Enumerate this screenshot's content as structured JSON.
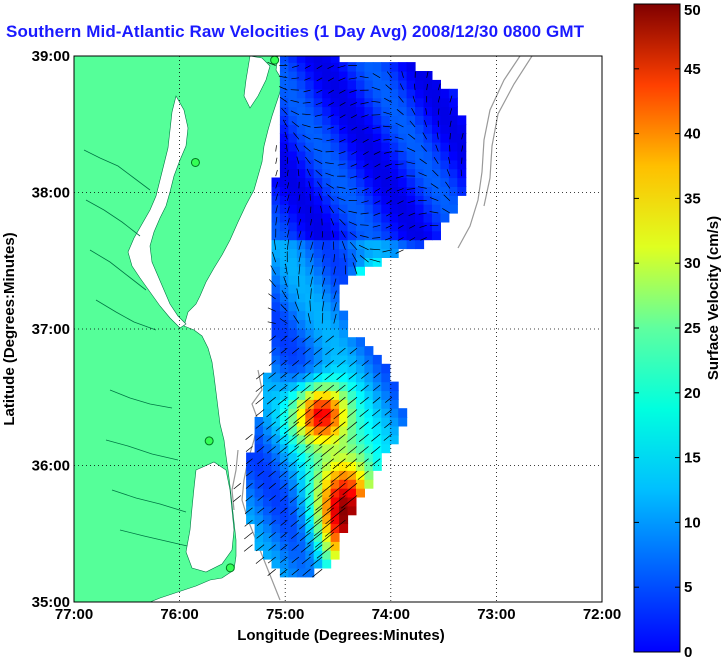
{
  "title": "Southern Mid-Atlantic Raw Velocities (1 Day Avg) 2008/12/30 0800 GMT",
  "map": {
    "xlabel": "Longitude (Degrees:Minutes)",
    "ylabel": "Latitude (Degrees:Minutes)",
    "xlim": [
      -77,
      -72
    ],
    "ylim": [
      35,
      39
    ],
    "x_ticks": [
      {
        "value": -77,
        "label": "77:00"
      },
      {
        "value": -76,
        "label": "76:00"
      },
      {
        "value": -75,
        "label": "75:00"
      },
      {
        "value": -74,
        "label": "74:00"
      },
      {
        "value": -73,
        "label": "73:00"
      },
      {
        "value": -72,
        "label": "72:00"
      }
    ],
    "y_ticks": [
      {
        "value": 35,
        "label": "35:00"
      },
      {
        "value": 36,
        "label": "36:00"
      },
      {
        "value": 37,
        "label": "37:00"
      },
      {
        "value": 38,
        "label": "38:00"
      },
      {
        "value": 39,
        "label": "39:00"
      }
    ],
    "grid": "dotted",
    "land_color": "#55ff99",
    "stations": [
      {
        "lon": -75.1,
        "lat": 38.97
      },
      {
        "lon": -75.85,
        "lat": 38.22
      },
      {
        "lon": -75.72,
        "lat": 36.18
      },
      {
        "lon": -75.52,
        "lat": 35.25
      }
    ]
  },
  "colorbar": {
    "label": "Surface Velocity (cm/s)",
    "min": 0,
    "max": 50,
    "ticks": [
      {
        "value": 0,
        "label": "0"
      },
      {
        "value": 5,
        "label": "5"
      },
      {
        "value": 10,
        "label": "10"
      },
      {
        "value": 15,
        "label": "15"
      },
      {
        "value": 20,
        "label": "20"
      },
      {
        "value": 25,
        "label": "25"
      },
      {
        "value": 30,
        "label": "30"
      },
      {
        "value": 35,
        "label": "35"
      },
      {
        "value": 40,
        "label": "40"
      },
      {
        "value": 45,
        "label": "45"
      },
      {
        "value": 50,
        "label": "50"
      }
    ],
    "colormap": "jet"
  }
}
